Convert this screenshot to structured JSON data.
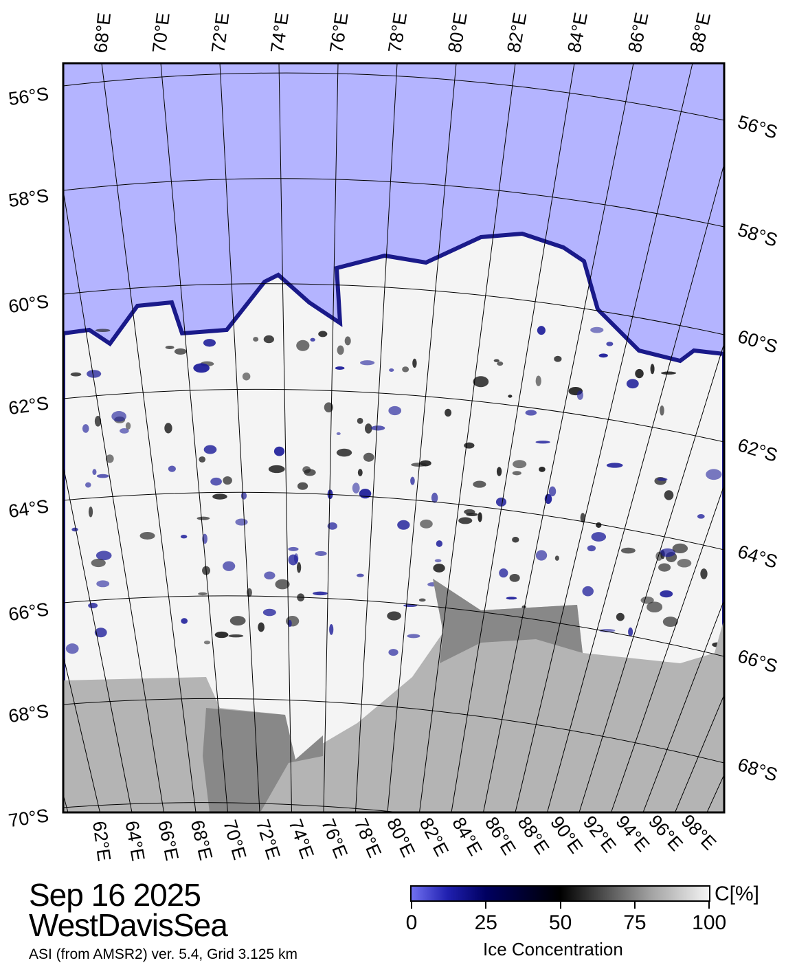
{
  "map": {
    "top_lon_labels": [
      "68°E",
      "70°E",
      "72°E",
      "74°E",
      "76°E",
      "78°E",
      "80°E",
      "82°E",
      "84°E",
      "86°E",
      "88°E"
    ],
    "bottom_lon_labels": [
      "62°E",
      "64°E",
      "66°E",
      "68°E",
      "70°E",
      "72°E",
      "74°E",
      "76°E",
      "78°E",
      "80°E",
      "82°E",
      "84°E",
      "86°E",
      "88°E",
      "90°E",
      "92°E",
      "94°E",
      "96°E",
      "98°E"
    ],
    "left_lat_labels": [
      "56°S",
      "58°S",
      "60°S",
      "62°S",
      "64°S",
      "66°S",
      "68°S",
      "70°S"
    ],
    "right_lat_labels": [
      "56°S",
      "58°S",
      "60°S",
      "62°S",
      "64°S",
      "66°S",
      "68°S"
    ],
    "colors": {
      "open_water": "#b4b4ff",
      "land": "#b4b4b4",
      "ice_shelf": "#888888",
      "full_ice": "#ffffff",
      "low_ice": "#3a3ad8"
    }
  },
  "info": {
    "date": "Sep 16 2025",
    "region": "WestDavisSea",
    "source": "ASI (from AMSR2) ver. 5.4,  Grid 3.125 km"
  },
  "colorbar": {
    "unit": "C[%]",
    "title": "Ice Concentration",
    "ticks": [
      "0",
      "25",
      "50",
      "75",
      "100"
    ],
    "colormap": [
      "#7070f0",
      "#000060",
      "#000000",
      "#ffffff"
    ]
  }
}
